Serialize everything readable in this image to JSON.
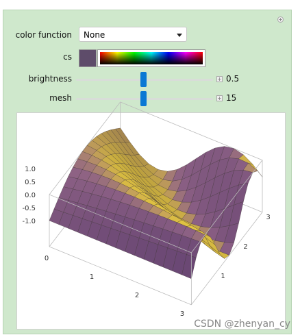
{
  "controls": {
    "color_function": {
      "label": "color function",
      "selected": "None"
    },
    "cs": {
      "label": "cs"
    },
    "brightness": {
      "label": "brightness",
      "value": "0.5"
    },
    "mesh": {
      "label": "mesh",
      "value": "15"
    }
  },
  "plot": {
    "z_ticks": [
      "1.0",
      "0.5",
      "0.0",
      "-0.5",
      "-1.0"
    ],
    "x_ticks": [
      "0",
      "1",
      "2",
      "3"
    ],
    "y_ticks": [
      "1",
      "2",
      "3"
    ]
  },
  "watermark": "CSDN @zhenyan_cy"
}
